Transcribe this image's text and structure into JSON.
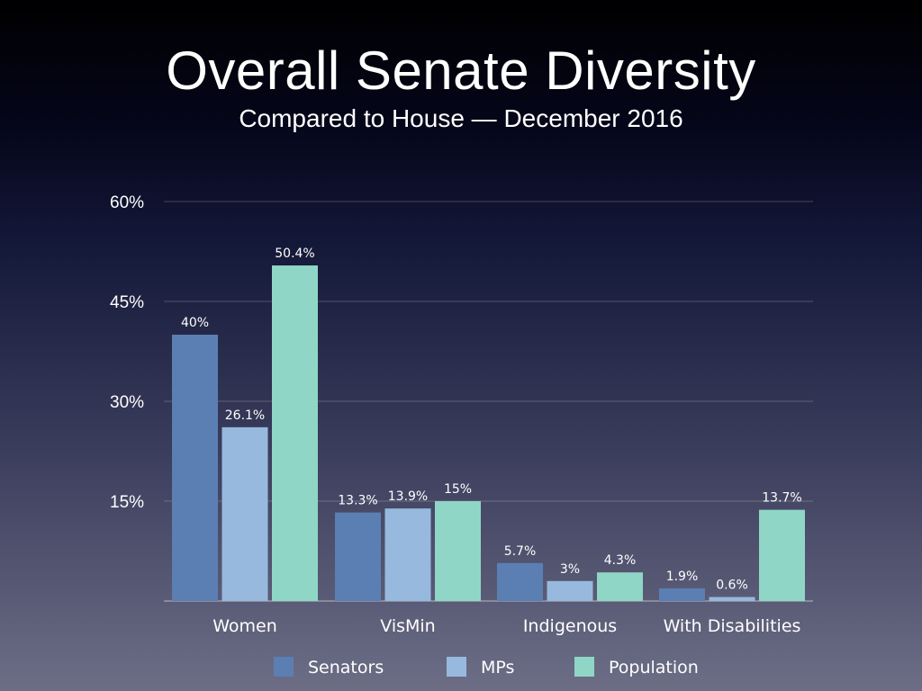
{
  "slide": {
    "title": "Overall Senate Diversity",
    "subtitle": "Compared to House — December 2016"
  },
  "chart_data": {
    "type": "bar",
    "categories": [
      "Women",
      "VisMin",
      "Indigenous",
      "With Disabilities"
    ],
    "series": [
      {
        "name": "Senators",
        "color": "#5b7fb3",
        "values": [
          40,
          13.3,
          5.7,
          1.9
        ],
        "labels": [
          "40%",
          "13.3%",
          "5.7%",
          "1.9%"
        ]
      },
      {
        "name": "MPs",
        "color": "#98b9de",
        "values": [
          26.1,
          13.9,
          3,
          0.6
        ],
        "labels": [
          "26.1%",
          "13.9%",
          "3%",
          "0.6%"
        ]
      },
      {
        "name": "Population",
        "color": "#8fd6c6",
        "values": [
          50.4,
          15,
          4.3,
          13.7
        ],
        "labels": [
          "50.4%",
          "15%",
          "4.3%",
          "13.7%"
        ]
      }
    ],
    "yticks": [
      15,
      30,
      45,
      60
    ],
    "ytick_labels": [
      "15%",
      "30%",
      "45%",
      "60%"
    ],
    "ylim": [
      0,
      60
    ],
    "grid": true,
    "legend_position": "bottom"
  }
}
